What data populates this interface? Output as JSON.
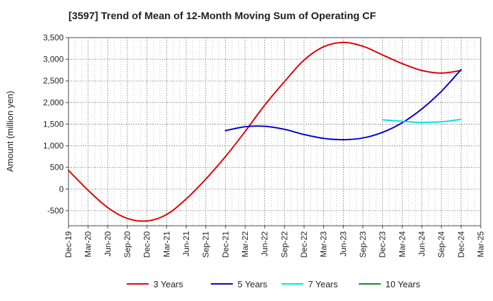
{
  "chart_data": {
    "type": "line",
    "title": "[3597]  Trend of Mean of 12-Month Moving Sum of Operating CF",
    "ylabel": "Amount (million yen)",
    "xlabel": "",
    "ylim": [
      -850,
      3500
    ],
    "yticks": [
      3500,
      3000,
      2500,
      2000,
      1500,
      1000,
      500,
      0,
      -500
    ],
    "ytick_labels": [
      "3,500",
      "3,000",
      "2,500",
      "2,000",
      "1,500",
      "1,000",
      "500",
      "0",
      "-500"
    ],
    "xtick_labels": [
      "Dec-19",
      "Mar-20",
      "Jun-20",
      "Sep-20",
      "Dec-20",
      "Mar-21",
      "Jun-21",
      "Sep-21",
      "Dec-21",
      "Mar-22",
      "Jun-22",
      "Sep-22",
      "Dec-22",
      "Mar-23",
      "Jun-23",
      "Sep-23",
      "Dec-23",
      "Mar-24",
      "Jun-24",
      "Sep-24",
      "Dec-24",
      "Mar-25"
    ],
    "grid": true,
    "legend_position": "bottom",
    "series": [
      {
        "name": "3 Years",
        "color": "#dd0000",
        "x": [
          0,
          1,
          2,
          3,
          4,
          5,
          6,
          7,
          8,
          9,
          10,
          11,
          12,
          13,
          14,
          15,
          16,
          17,
          18,
          19,
          20
        ],
        "values": [
          430,
          -30,
          -430,
          -680,
          -740,
          -590,
          -230,
          230,
          750,
          1330,
          1940,
          2480,
          2980,
          3290,
          3390,
          3300,
          3100,
          2900,
          2740,
          2680,
          2740
        ]
      },
      {
        "name": "5 Years",
        "color": "#0000cc",
        "x": [
          8,
          9,
          10,
          11,
          12,
          13,
          14,
          15,
          16,
          17,
          18,
          19,
          20
        ],
        "values": [
          1350,
          1440,
          1450,
          1380,
          1260,
          1170,
          1140,
          1180,
          1310,
          1530,
          1850,
          2260,
          2760
        ]
      },
      {
        "name": "7 Years",
        "color": "#00e0e8",
        "x": [
          16,
          17,
          18,
          19,
          20
        ],
        "values": [
          1600,
          1565,
          1540,
          1555,
          1610
        ]
      },
      {
        "name": "10 Years",
        "color": "#118811",
        "x": [],
        "values": []
      }
    ]
  }
}
